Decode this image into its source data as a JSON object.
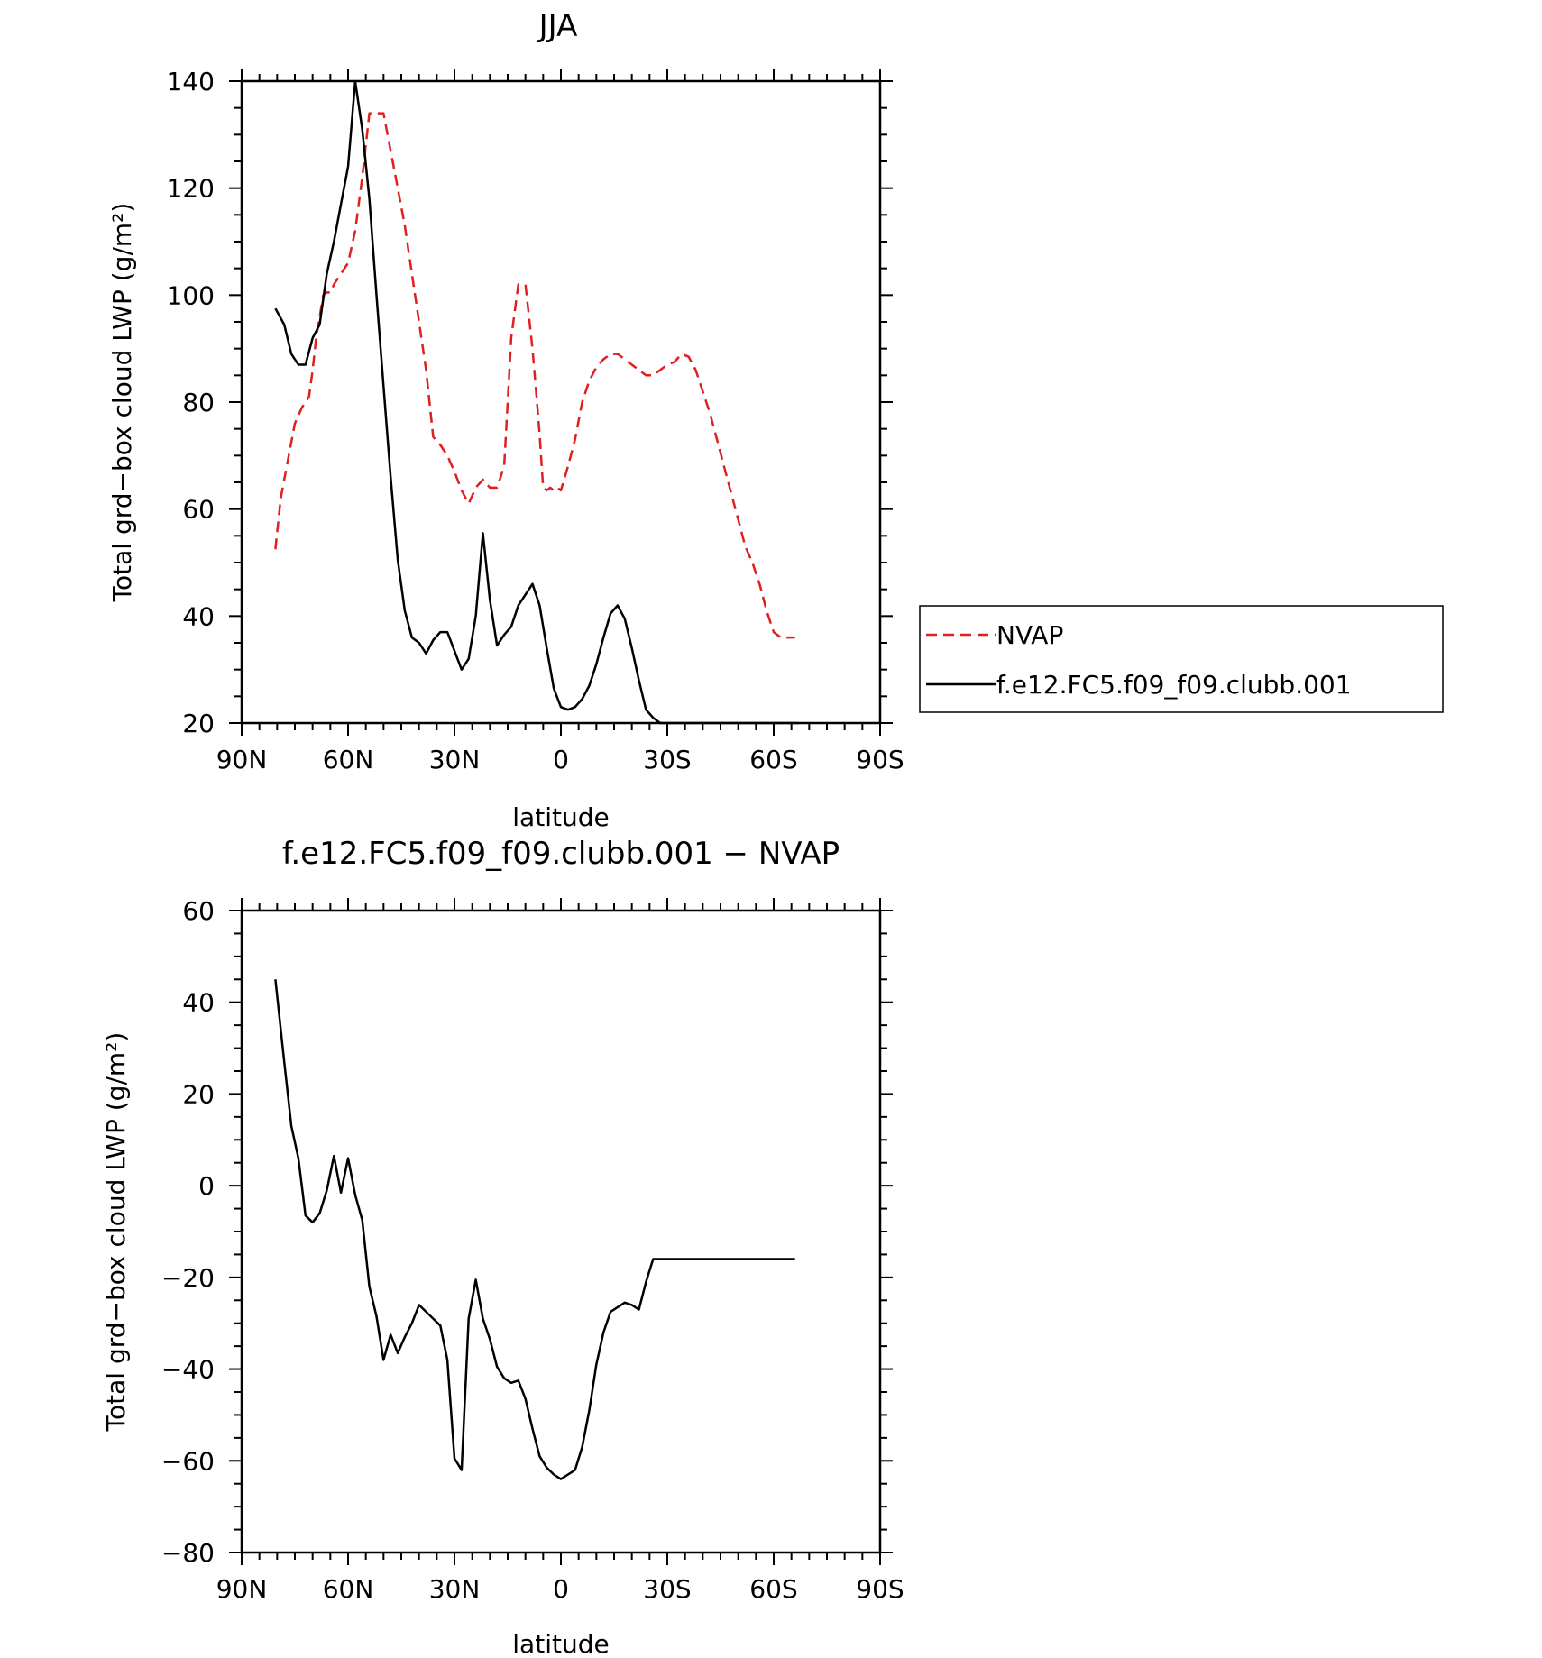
{
  "chart_data": [
    {
      "type": "line",
      "title": "JJA",
      "xlabel": "latitude",
      "ylabel": "Total grd−box cloud LWP (g/m²)",
      "xlim": [
        90,
        -90
      ],
      "ylim": [
        20,
        140
      ],
      "xticks": [
        90,
        60,
        30,
        0,
        -30,
        -60,
        -90
      ],
      "xticklabels": [
        "90N",
        "60N",
        "30N",
        "0",
        "30S",
        "60S",
        "90S"
      ],
      "yticks": [
        20,
        40,
        60,
        80,
        100,
        120,
        140
      ],
      "yticklabels": [
        "20",
        "40",
        "60",
        "80",
        "100",
        "120",
        "140"
      ],
      "legend_position": "right",
      "series": [
        {
          "name": "NVAP",
          "color": "#e02020",
          "dash": true,
          "x": [
            80.5,
            79,
            77,
            75,
            73,
            71,
            70,
            69,
            68,
            67,
            66,
            65,
            64,
            62,
            60,
            58,
            56,
            54,
            52,
            50,
            48,
            46,
            44,
            42,
            40,
            38,
            36,
            34,
            32,
            30,
            28,
            26,
            24,
            22,
            20,
            18,
            16,
            14,
            12,
            10,
            8,
            7,
            6,
            5,
            4,
            3,
            2,
            1,
            0,
            -2,
            -4,
            -6,
            -8,
            -10,
            -12,
            -14,
            -16,
            -18,
            -20,
            -22,
            -24,
            -26,
            -28,
            -30,
            -32,
            -34,
            -36,
            -38,
            -40,
            -42,
            -44,
            -46,
            -48,
            -50,
            -52,
            -54,
            -56,
            -58,
            -60,
            -62,
            -64,
            -66
          ],
          "y": [
            52.5,
            62,
            69,
            76,
            79,
            81,
            86,
            92,
            96,
            100,
            100.5,
            100.5,
            102,
            104,
            106,
            112,
            122,
            134,
            134,
            134,
            127,
            120,
            113,
            104,
            95,
            86,
            73.5,
            72,
            70,
            67,
            63.5,
            61,
            64,
            65.5,
            64,
            64,
            68,
            92,
            102,
            102,
            90,
            82,
            74,
            64,
            63.5,
            64,
            63.5,
            64,
            63.5,
            68,
            73,
            80,
            84,
            86.5,
            88,
            89,
            89,
            88,
            87,
            86,
            85,
            85,
            86,
            87,
            87.5,
            89,
            88.5,
            86,
            82,
            78,
            73,
            68,
            63,
            58,
            53,
            50,
            46,
            41,
            37,
            36,
            36,
            36
          ]
        },
        {
          "name": "f.e12.FC5.f09_f09.clubb.001",
          "color": "#000000",
          "dash": false,
          "x": [
            80.5,
            78,
            76,
            74,
            72,
            70,
            68,
            66,
            64,
            62,
            60,
            58,
            56,
            54,
            52,
            50,
            48,
            46,
            44,
            42,
            40,
            38,
            36,
            34,
            32,
            30,
            28,
            26,
            24,
            22,
            20,
            18,
            16,
            14,
            12,
            10,
            8,
            6,
            4,
            2,
            0,
            -2,
            -4,
            -6,
            -8,
            -10,
            -12,
            -14,
            -16,
            -18,
            -20,
            -22,
            -24,
            -26,
            -28,
            -30,
            -32,
            -34,
            -36,
            -38,
            -40,
            -42,
            -44,
            -46,
            -48,
            -50,
            -52,
            -54,
            -56,
            -58,
            -60,
            -62,
            -64,
            -66,
            -67
          ],
          "y": [
            97.5,
            94.5,
            89,
            87,
            87,
            92,
            94.5,
            104,
            110,
            117,
            124,
            140,
            131,
            118,
            100,
            83,
            66,
            50.5,
            41,
            36,
            35,
            33,
            35.5,
            37,
            37,
            33.5,
            30,
            32,
            40,
            55.5,
            43,
            34.5,
            36.5,
            38,
            42,
            44,
            46,
            42,
            34,
            26.5,
            23,
            22.5,
            23,
            24.5,
            27,
            31,
            36,
            40.5,
            42,
            39.5,
            34,
            28,
            22.5,
            21,
            20,
            20,
            20,
            20,
            20,
            20,
            20,
            20,
            20,
            20,
            20,
            20,
            20,
            20,
            20,
            20,
            20,
            20,
            20,
            20,
            20
          ]
        }
      ]
    },
    {
      "type": "line",
      "title": "f.e12.FC5.f09_f09.clubb.001 − NVAP",
      "xlabel": "latitude",
      "ylabel": "Total grd−box cloud LWP (g/m²)",
      "xlim": [
        90,
        -90
      ],
      "ylim": [
        -80,
        60
      ],
      "xticks": [
        90,
        60,
        30,
        0,
        -30,
        -60,
        -90
      ],
      "xticklabels": [
        "90N",
        "60N",
        "30N",
        "0",
        "30S",
        "60S",
        "90S"
      ],
      "yticks": [
        -80,
        -60,
        -40,
        -20,
        0,
        20,
        40,
        60
      ],
      "yticklabels": [
        "−80",
        "−60",
        "−40",
        "−20",
        "0",
        "20",
        "40",
        "60"
      ],
      "series": [
        {
          "name": "f.e12.FC5.f09_f09.clubb.001",
          "color": "#000000",
          "dash": false,
          "x": [
            80.5,
            78,
            76,
            74,
            72,
            70,
            68,
            66,
            64,
            62,
            60,
            58,
            56,
            54,
            52,
            50,
            48,
            46,
            44,
            42,
            40,
            38,
            36,
            34,
            32,
            30,
            28,
            26,
            24,
            22,
            20,
            18,
            16,
            14,
            12,
            10,
            8,
            6,
            4,
            2,
            0,
            -2,
            -4,
            -6,
            -8,
            -10,
            -12,
            -14,
            -16,
            -18,
            -20,
            -22,
            -24,
            -26,
            -28,
            -30,
            -32,
            -34,
            -36,
            -38,
            -40,
            -42,
            -44,
            -46,
            -48,
            -50,
            -52,
            -54,
            -56,
            -58,
            -60,
            -62,
            -64,
            -66
          ],
          "y": [
            45,
            27,
            13,
            6,
            -6.5,
            -8,
            -6,
            -1,
            6.5,
            -1.5,
            6,
            -2,
            -7.5,
            -22,
            -28.5,
            -38,
            -32.5,
            -36.5,
            -33,
            -30,
            -26,
            -27.5,
            -29,
            -30.5,
            -38,
            -59.5,
            -62,
            -29,
            -20.5,
            -29,
            -33.5,
            -39.5,
            -42,
            -43,
            -42.5,
            -46.5,
            -53,
            -59,
            -61.5,
            -63,
            -64,
            -63,
            -62,
            -57,
            -49,
            -39,
            -32,
            -27.5,
            -26.5,
            -25.5,
            -26,
            -27,
            -21,
            -16,
            -16,
            -16,
            -16,
            -16,
            -16,
            -16,
            -16,
            -16,
            -16,
            -16,
            -16,
            -16,
            -16,
            -16,
            -16,
            -16,
            -16,
            -16,
            -16,
            -16
          ]
        }
      ]
    }
  ]
}
